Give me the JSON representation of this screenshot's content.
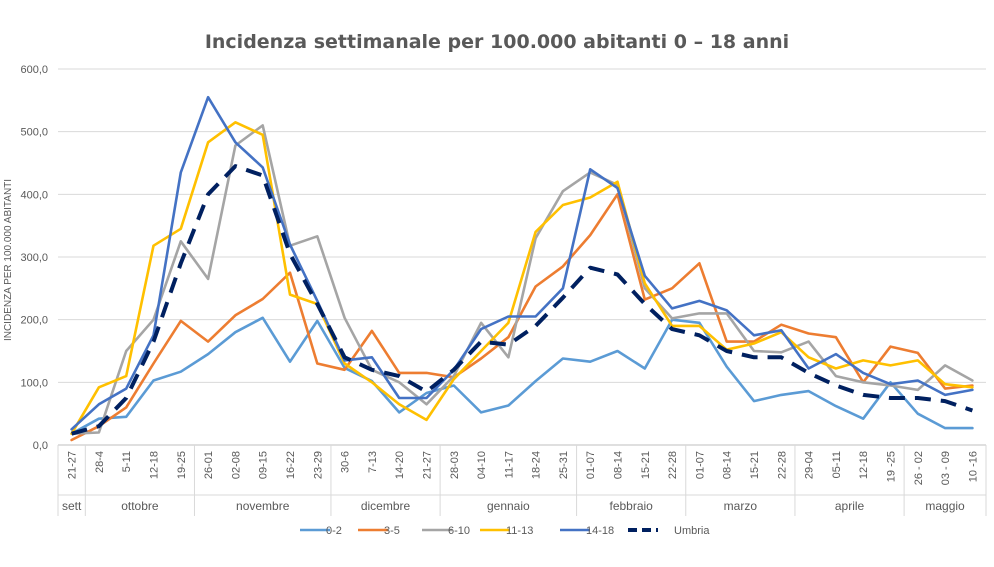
{
  "chart_data": {
    "type": "line",
    "title": "Incidenza settimanale per 100.000 abitanti 0 – 18 anni",
    "ylabel": "INCIDENZA PER 100.000 ABITANTI",
    "ylim": [
      0,
      600
    ],
    "yticks": [
      "0,0",
      "100,0",
      "200,0",
      "300,0",
      "400,0",
      "500,0",
      "600,0"
    ],
    "ytick_values": [
      0,
      100,
      200,
      300,
      400,
      500,
      600
    ],
    "categories": [
      "21-27",
      "28-4",
      "5-11",
      "12-18",
      "19-25",
      "26-01",
      "02-08",
      "09-15",
      "16-22",
      "23-29",
      "30-6",
      "7-13",
      "14-20",
      "21-27",
      "28-03",
      "04-10",
      "11-17",
      "18-24",
      "25-31",
      "01-07",
      "08-14",
      "15-21",
      "22-28",
      "01-07",
      "08-14",
      "15-21",
      "22-28",
      "29-04",
      "05-11",
      "12-18",
      "19 -25",
      "26 - 02",
      "03 - 09",
      "10 -16"
    ],
    "months": [
      {
        "label": "sett",
        "start": 0,
        "end": 0
      },
      {
        "label": "ottobre",
        "start": 1,
        "end": 4
      },
      {
        "label": "novembre",
        "start": 5,
        "end": 9
      },
      {
        "label": "dicembre",
        "start": 10,
        "end": 13
      },
      {
        "label": "gennaio",
        "start": 14,
        "end": 18
      },
      {
        "label": "febbraio",
        "start": 19,
        "end": 22
      },
      {
        "label": "marzo",
        "start": 23,
        "end": 26
      },
      {
        "label": "aprile",
        "start": 27,
        "end": 30
      },
      {
        "label": "maggio",
        "start": 31,
        "end": 33
      }
    ],
    "legend_position": "bottom",
    "grid": true,
    "series": [
      {
        "name": "0-2",
        "color": "#5B9BD5",
        "dashed": false,
        "values": [
          18,
          42,
          45,
          103,
          117,
          145,
          180,
          203,
          133,
          198,
          123,
          102,
          52,
          83,
          95,
          52,
          63,
          102,
          138,
          133,
          150,
          122,
          200,
          195,
          125,
          70,
          80,
          86,
          62,
          42,
          100,
          50,
          27,
          27
        ]
      },
      {
        "name": "3-5",
        "color": "#ED7D31",
        "dashed": false,
        "values": [
          8,
          30,
          60,
          130,
          198,
          165,
          207,
          233,
          275,
          130,
          120,
          182,
          115,
          115,
          108,
          138,
          172,
          253,
          285,
          335,
          400,
          232,
          250,
          290,
          165,
          165,
          192,
          178,
          172,
          100,
          157,
          147,
          90,
          95
        ]
      },
      {
        "name": "6-10",
        "color": "#A5A5A5",
        "dashed": false,
        "values": [
          18,
          20,
          150,
          200,
          325,
          265,
          478,
          510,
          318,
          333,
          203,
          120,
          100,
          65,
          110,
          195,
          140,
          330,
          405,
          435,
          415,
          250,
          202,
          210,
          210,
          150,
          148,
          165,
          110,
          100,
          95,
          88,
          127,
          103
        ]
      },
      {
        "name": "11-13",
        "color": "#FFC000",
        "dashed": false,
        "values": [
          18,
          92,
          110,
          318,
          345,
          483,
          515,
          495,
          240,
          225,
          130,
          100,
          65,
          40,
          105,
          150,
          195,
          340,
          383,
          395,
          420,
          258,
          190,
          190,
          152,
          162,
          180,
          140,
          122,
          135,
          127,
          135,
          97,
          92
        ]
      },
      {
        "name": "14-18",
        "color": "#4472C4",
        "dashed": false,
        "values": [
          25,
          65,
          90,
          175,
          435,
          555,
          483,
          443,
          320,
          230,
          135,
          140,
          75,
          75,
          120,
          185,
          205,
          205,
          250,
          440,
          410,
          270,
          218,
          230,
          215,
          175,
          183,
          122,
          145,
          115,
          97,
          103,
          80,
          88
        ]
      },
      {
        "name": "Umbria",
        "color": "#002060",
        "dashed": true,
        "values": [
          18,
          30,
          75,
          165,
          290,
          400,
          445,
          430,
          305,
          225,
          140,
          120,
          110,
          85,
          120,
          165,
          160,
          190,
          235,
          283,
          272,
          225,
          185,
          175,
          150,
          140,
          140,
          115,
          95,
          80,
          75,
          75,
          70,
          55
        ]
      }
    ]
  }
}
